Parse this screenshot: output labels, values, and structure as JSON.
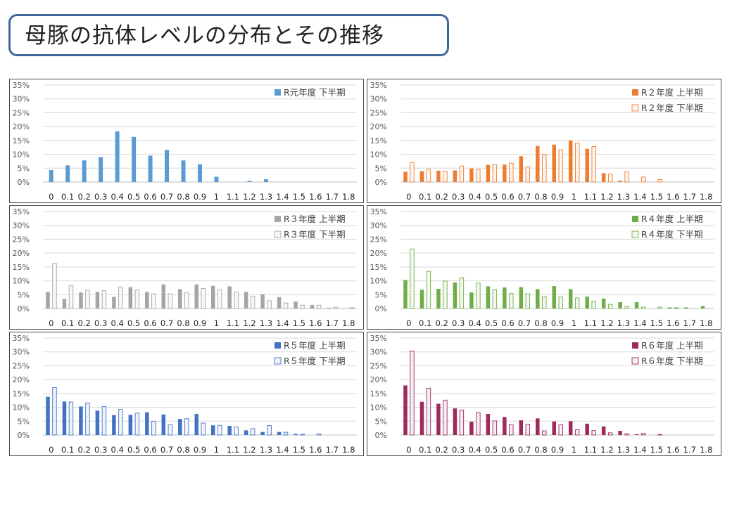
{
  "slide": {
    "title": "母豚の抗体レベルの分布とその推移"
  },
  "colors": {
    "r1": "#5b9bd5",
    "r2": "#ed7d31",
    "r3": "#a5a5a5",
    "r4": "#70ad47",
    "r5": "#4472c4",
    "r6": "#9e2a5e",
    "grid": "#d9d9d9",
    "axis": "#bfbfbf",
    "text": "#595959"
  },
  "chart_data": [
    {
      "type": "bar",
      "categories": [
        "0",
        "0.1",
        "0.2",
        "0.3",
        "0.4",
        "0.5",
        "0.6",
        "0.7",
        "0.8",
        "0.9",
        "1",
        "1.1",
        "1.2",
        "1.3",
        "1.4",
        "1.5",
        "1.6",
        "1.7",
        "1.8"
      ],
      "y_ticks": [
        "0%",
        "5%",
        "10%",
        "15%",
        "20%",
        "25%",
        "30%",
        "35%"
      ],
      "ylim": [
        0,
        35
      ],
      "legend_position": "top-right",
      "series": [
        {
          "name": "R元年度 下半期",
          "style": "solid",
          "color_key": "r1",
          "values": [
            4.3,
            6.0,
            7.8,
            9.0,
            18.3,
            16.3,
            9.5,
            11.6,
            7.8,
            6.4,
            1.9,
            0,
            0.4,
            1.0,
            0,
            0,
            0,
            0,
            0
          ]
        }
      ]
    },
    {
      "type": "bar",
      "categories": [
        "0",
        "0.1",
        "0.2",
        "0.3",
        "0.4",
        "0.5",
        "0.6",
        "0.7",
        "0.8",
        "0.9",
        "1",
        "1.1",
        "1.2",
        "1.3",
        "1.4",
        "1.5",
        "1.6",
        "1.7",
        "1.8"
      ],
      "y_ticks": [
        "0%",
        "5%",
        "10%",
        "15%",
        "20%",
        "25%",
        "30%",
        "35%"
      ],
      "ylim": [
        0,
        35
      ],
      "legend_position": "top-right",
      "series": [
        {
          "name": "R２年度 上半期",
          "style": "solid",
          "color_key": "r2",
          "values": [
            3.7,
            3.9,
            4.1,
            4.2,
            4.9,
            6.2,
            6.3,
            9.3,
            13.0,
            13.5,
            15.0,
            12.0,
            3.2,
            0.5,
            0,
            0,
            0,
            0,
            0
          ]
        },
        {
          "name": "R２年度 下半期",
          "style": "hatched",
          "color_key": "r2",
          "values": [
            7.0,
            4.6,
            3.9,
            5.8,
            4.5,
            6.3,
            6.8,
            5.5,
            10.0,
            11.6,
            14.0,
            12.8,
            2.9,
            3.7,
            1.8,
            0.9,
            0,
            0,
            0
          ]
        }
      ]
    },
    {
      "type": "bar",
      "categories": [
        "0",
        "0.1",
        "0.2",
        "0.3",
        "0.4",
        "0.5",
        "0.6",
        "0.7",
        "0.8",
        "0.9",
        "1",
        "1.1",
        "1.2",
        "1.3",
        "1.4",
        "1.5",
        "1.6",
        "1.7",
        "1.8"
      ],
      "y_ticks": [
        "0%",
        "5%",
        "10%",
        "15%",
        "20%",
        "25%",
        "30%",
        "35%"
      ],
      "ylim": [
        0,
        35
      ],
      "legend_position": "top-right",
      "series": [
        {
          "name": "R３年度 上半期",
          "style": "solid",
          "color_key": "r3",
          "values": [
            6.0,
            3.5,
            5.8,
            6.0,
            4.2,
            7.7,
            6.0,
            8.7,
            7.0,
            8.7,
            8.2,
            8.0,
            6.0,
            5.2,
            4.1,
            2.5,
            1.3,
            0.3,
            0
          ]
        },
        {
          "name": "R３年度 下半期",
          "style": "hatched",
          "color_key": "r3",
          "values": [
            16.3,
            8.3,
            6.6,
            6.5,
            7.8,
            6.7,
            5.3,
            5.3,
            5.8,
            7.2,
            6.8,
            5.9,
            4.5,
            2.8,
            2.0,
            1.2,
            1.2,
            0.5,
            0.3
          ]
        }
      ]
    },
    {
      "type": "bar",
      "categories": [
        "0",
        "0.1",
        "0.2",
        "0.3",
        "0.4",
        "0.5",
        "0.6",
        "0.7",
        "0.8",
        "0.9",
        "1",
        "1.1",
        "1.2",
        "1.3",
        "1.4",
        "1.5",
        "1.6",
        "1.7",
        "1.8"
      ],
      "y_ticks": [
        "0%",
        "5%",
        "10%",
        "15%",
        "20%",
        "25%",
        "30%",
        "35%"
      ],
      "ylim": [
        0,
        35
      ],
      "legend_position": "top-right",
      "series": [
        {
          "name": "R４年度 上半期",
          "style": "solid",
          "color_key": "r4",
          "values": [
            10.3,
            6.8,
            7.1,
            9.4,
            5.8,
            8.0,
            7.6,
            7.7,
            7.0,
            8.1,
            7.0,
            4.3,
            3.6,
            2.3,
            2.3,
            0,
            0.4,
            0.4,
            0.9
          ]
        },
        {
          "name": "R４年度 下半期",
          "style": "hatched",
          "color_key": "r4",
          "values": [
            21.5,
            13.4,
            9.9,
            11.1,
            9.2,
            6.8,
            5.4,
            5.3,
            4.3,
            4.2,
            3.8,
            2.7,
            1.5,
            0.8,
            0.5,
            0.5,
            0.3,
            0,
            0
          ]
        }
      ]
    },
    {
      "type": "bar",
      "categories": [
        "0",
        "0.1",
        "0.2",
        "0.3",
        "0.4",
        "0.5",
        "0.6",
        "0.7",
        "0.8",
        "0.9",
        "1",
        "1.1",
        "1.2",
        "1.3",
        "1.4",
        "1.5",
        "1.6",
        "1.7",
        "1.8"
      ],
      "y_ticks": [
        "0%",
        "5%",
        "10%",
        "15%",
        "20%",
        "25%",
        "30%",
        "35%"
      ],
      "ylim": [
        0,
        35
      ],
      "legend_position": "top-right",
      "series": [
        {
          "name": "R５年度 上半期",
          "style": "solid",
          "color_key": "r5",
          "values": [
            13.8,
            12.1,
            10.3,
            8.8,
            7.2,
            7.3,
            8.2,
            7.4,
            5.8,
            7.6,
            3.5,
            3.3,
            1.7,
            1.1,
            1.1,
            0.4,
            0,
            0,
            0
          ]
        },
        {
          "name": "R５年度 下半期",
          "style": "hatched",
          "color_key": "r5",
          "values": [
            17.1,
            11.9,
            11.6,
            10.3,
            9.2,
            7.9,
            4.9,
            3.7,
            5.9,
            4.3,
            3.5,
            2.9,
            2.3,
            3.4,
            1.0,
            0.3,
            0.4,
            0,
            0
          ]
        }
      ]
    },
    {
      "type": "bar",
      "categories": [
        "0",
        "0.1",
        "0.2",
        "0.3",
        "0.4",
        "0.5",
        "0.6",
        "0.7",
        "0.8",
        "0.9",
        "1",
        "1.1",
        "1.2",
        "1.3",
        "1.4",
        "1.5",
        "1.6",
        "1.7",
        "1.8"
      ],
      "y_ticks": [
        "0%",
        "5%",
        "10%",
        "15%",
        "20%",
        "25%",
        "30%",
        "35%"
      ],
      "ylim": [
        0,
        35
      ],
      "legend_position": "top-right",
      "series": [
        {
          "name": "R６年度 上半期",
          "style": "solid",
          "color_key": "r6",
          "values": [
            17.9,
            12.0,
            11.3,
            9.6,
            4.8,
            7.6,
            6.5,
            5.3,
            6.0,
            4.9,
            5.0,
            4.1,
            3.1,
            1.5,
            0.3,
            0,
            0,
            0,
            0
          ]
        },
        {
          "name": "R６年度 下半期",
          "style": "hatched",
          "color_key": "r6",
          "values": [
            30.3,
            16.9,
            12.6,
            9.0,
            8.1,
            5.1,
            3.8,
            3.9,
            1.5,
            3.7,
            1.9,
            1.6,
            0.8,
            0.5,
            0.6,
            0.2,
            0,
            0,
            0
          ]
        }
      ]
    }
  ]
}
